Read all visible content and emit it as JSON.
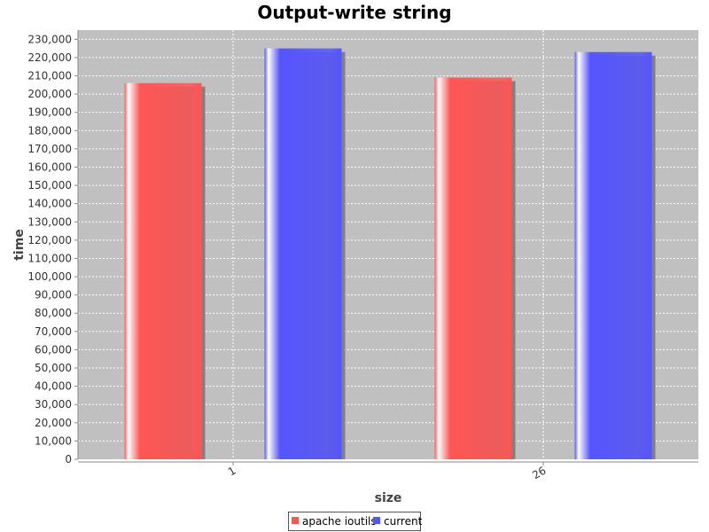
{
  "chart_data": {
    "type": "bar",
    "title": "Output-write string",
    "xlabel": "size",
    "ylabel": "time",
    "categories": [
      "1",
      "26"
    ],
    "series": [
      {
        "name": "apache ioutils",
        "values": [
          206000,
          209000
        ],
        "color": "#ff5555"
      },
      {
        "name": "current",
        "values": [
          225000,
          223000
        ],
        "color": "#5555ff"
      }
    ],
    "ylim": [
      0,
      235000
    ],
    "yticks": [
      0,
      10000,
      20000,
      30000,
      40000,
      50000,
      60000,
      70000,
      80000,
      90000,
      100000,
      110000,
      120000,
      130000,
      140000,
      150000,
      160000,
      170000,
      180000,
      190000,
      200000,
      210000,
      220000,
      230000
    ],
    "grid": true,
    "legend": "bottom-center",
    "plot_background": "#c0c0c0"
  }
}
